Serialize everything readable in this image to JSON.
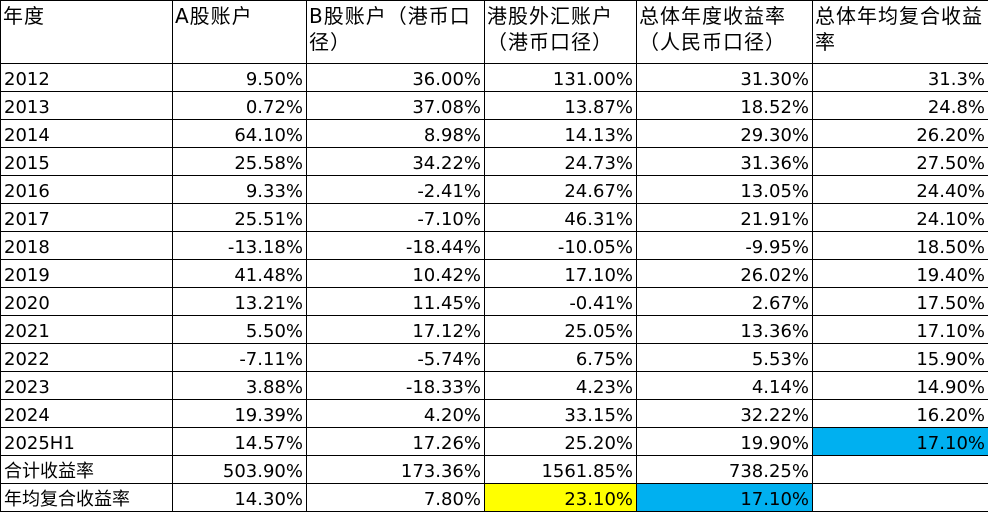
{
  "headers": [
    "年度",
    "A股账户",
    "B股账户（港币口径）",
    "港股外汇账户（港币口径）",
    "总体年度收益率（人民币口径）",
    "总体年均复合收益率"
  ],
  "rows": [
    {
      "year": "2012",
      "a": "9.50%",
      "b": "36.00%",
      "hk": "131.00%",
      "total": "31.30%",
      "cagr": "31.3%"
    },
    {
      "year": "2013",
      "a": "0.72%",
      "b": "37.08%",
      "hk": "13.87%",
      "total": "18.52%",
      "cagr": "24.8%"
    },
    {
      "year": "2014",
      "a": "64.10%",
      "b": "8.98%",
      "hk": "14.13%",
      "total": "29.30%",
      "cagr": "26.20%"
    },
    {
      "year": "2015",
      "a": "25.58%",
      "b": "34.22%",
      "hk": "24.73%",
      "total": "31.36%",
      "cagr": "27.50%"
    },
    {
      "year": "2016",
      "a": "9.33%",
      "b": "-2.41%",
      "hk": "24.67%",
      "total": "13.05%",
      "cagr": "24.40%"
    },
    {
      "year": "2017",
      "a": "25.51%",
      "b": "-7.10%",
      "hk": "46.31%",
      "total": "21.91%",
      "cagr": "24.10%"
    },
    {
      "year": "2018",
      "a": "-13.18%",
      "b": "-18.44%",
      "hk": "-10.05%",
      "total": "-9.95%",
      "cagr": "18.50%"
    },
    {
      "year": "2019",
      "a": "41.48%",
      "b": "10.42%",
      "hk": "17.10%",
      "total": "26.02%",
      "cagr": "19.40%"
    },
    {
      "year": "2020",
      "a": "13.21%",
      "b": "11.45%",
      "hk": "-0.41%",
      "total": "2.67%",
      "cagr": "17.50%"
    },
    {
      "year": "2021",
      "a": "5.50%",
      "b": "17.12%",
      "hk": "25.05%",
      "total": "13.36%",
      "cagr": "17.10%"
    },
    {
      "year": "2022",
      "a": "-7.11%",
      "b": "-5.74%",
      "hk": "6.75%",
      "total": "5.53%",
      "cagr": "15.90%"
    },
    {
      "year": "2023",
      "a": "3.88%",
      "b": "-18.33%",
      "hk": "4.23%",
      "total": "4.14%",
      "cagr": "14.90%"
    },
    {
      "year": "2024",
      "a": "19.39%",
      "b": "4.20%",
      "hk": "33.15%",
      "total": "32.22%",
      "cagr": "16.20%"
    },
    {
      "year": "2025H1",
      "a": "14.57%",
      "b": "17.26%",
      "hk": "25.20%",
      "total": "19.90%",
      "cagr": "17.10%"
    }
  ],
  "summary": {
    "total_label": "合计收益率",
    "total_a": "503.90%",
    "total_b": "173.36%",
    "total_hk": "1561.85%",
    "total_total": "738.25%",
    "cagr_label": "年均复合收益率",
    "cagr_a": "14.30%",
    "cagr_b": "7.80%",
    "cagr_hk": "23.10%",
    "cagr_total": "17.10%"
  },
  "highlight_colors": {
    "yellow": "#ffff00",
    "blue": "#00b0f0"
  }
}
